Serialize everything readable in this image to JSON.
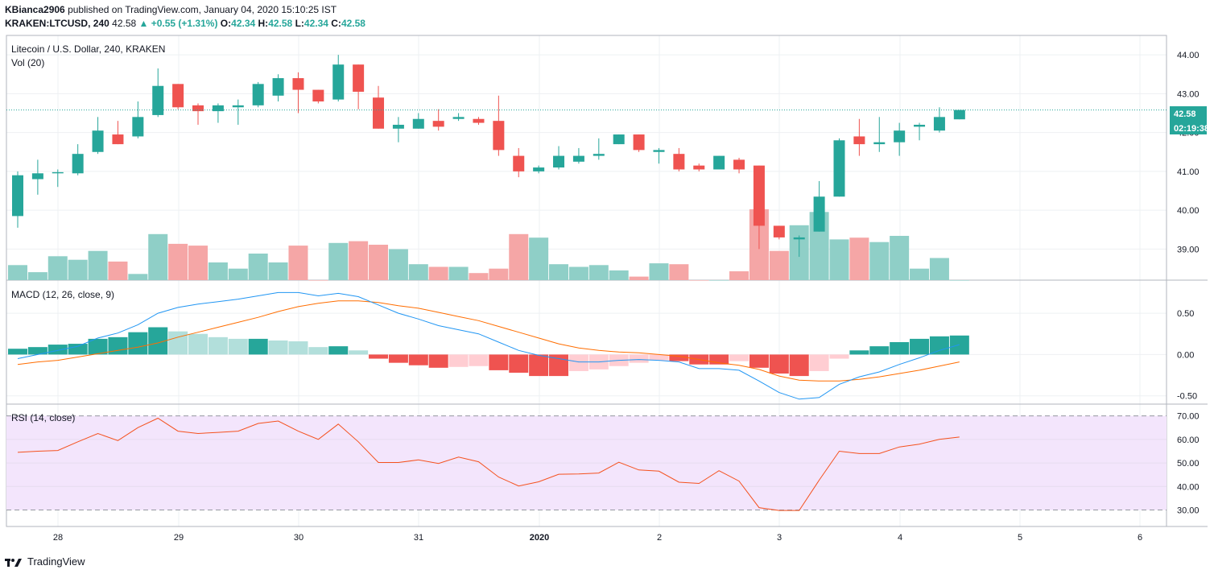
{
  "header": {
    "author": "KBianca2906",
    "published_text": "published on TradingView.com, January 04, 2020 15:10:25 IST",
    "symbol_line_prefix": "KRAKEN:LTCUSD, 240",
    "last": "42.58",
    "change": "▲ +0.55 (+1.31%)",
    "o_label": "O:",
    "o": "42.34",
    "h_label": "H:",
    "h": "42.58",
    "l_label": "L:",
    "l": "42.34",
    "c_label": "C:",
    "c": "42.58"
  },
  "panes": {
    "price_title": "Litecoin / U.S. Dollar, 240, KRAKEN",
    "vol_title": "Vol (20)",
    "macd_title": "MACD (12, 26, close, 9)",
    "rsi_title": "RSI (14, close)"
  },
  "price_badge": {
    "value": "42.58",
    "countdown": "02:19:38"
  },
  "branding": {
    "name": "TradingView"
  },
  "colors": {
    "up": "#26a69a",
    "down": "#ef5350",
    "up_light": "#b2dfdb",
    "down_light": "#ffcdd2",
    "vol_up": "#8fcfc7",
    "vol_down": "#f5a6a6",
    "macd_line": "#2196f3",
    "signal_line": "#ff6d00",
    "rsi_line": "#f4511e",
    "rsi_band": "#f3e5fc",
    "grid": "#eef0f3"
  },
  "chart_data": {
    "type": "candlestick",
    "price_axis": {
      "min": 38.2,
      "max": 44.5,
      "ticks": [
        "44.00",
        "43.00",
        "42.00",
        "41.00",
        "40.00",
        "39.00"
      ]
    },
    "x_axis": {
      "labels": [
        "28",
        "29",
        "30",
        "31",
        "2020",
        "2",
        "3",
        "4",
        "5",
        "6"
      ]
    },
    "candles": [
      {
        "o": 39.85,
        "h": 41.0,
        "l": 39.55,
        "c": 40.9
      },
      {
        "o": 40.8,
        "h": 41.3,
        "l": 40.4,
        "c": 40.95
      },
      {
        "o": 40.95,
        "h": 41.05,
        "l": 40.6,
        "c": 40.98
      },
      {
        "o": 40.95,
        "h": 41.7,
        "l": 40.9,
        "c": 41.45
      },
      {
        "o": 41.5,
        "h": 42.4,
        "l": 41.45,
        "c": 42.05
      },
      {
        "o": 41.95,
        "h": 42.3,
        "l": 41.7,
        "c": 41.7
      },
      {
        "o": 41.9,
        "h": 42.8,
        "l": 41.85,
        "c": 42.4
      },
      {
        "o": 42.45,
        "h": 43.65,
        "l": 42.4,
        "c": 43.2
      },
      {
        "o": 43.25,
        "h": 43.25,
        "l": 42.6,
        "c": 42.65
      },
      {
        "o": 42.7,
        "h": 42.75,
        "l": 42.2,
        "c": 42.55
      },
      {
        "o": 42.55,
        "h": 42.75,
        "l": 42.25,
        "c": 42.7
      },
      {
        "o": 42.65,
        "h": 42.85,
        "l": 42.2,
        "c": 42.7
      },
      {
        "o": 42.7,
        "h": 43.3,
        "l": 42.65,
        "c": 43.25
      },
      {
        "o": 42.95,
        "h": 43.5,
        "l": 42.8,
        "c": 43.4
      },
      {
        "o": 43.4,
        "h": 43.55,
        "l": 42.5,
        "c": 43.1
      },
      {
        "o": 43.1,
        "h": 43.1,
        "l": 42.75,
        "c": 42.8
      },
      {
        "o": 42.85,
        "h": 44.0,
        "l": 42.8,
        "c": 43.75
      },
      {
        "o": 43.75,
        "h": 43.75,
        "l": 42.6,
        "c": 43.05
      },
      {
        "o": 42.9,
        "h": 43.2,
        "l": 42.1,
        "c": 42.1
      },
      {
        "o": 42.1,
        "h": 42.4,
        "l": 41.75,
        "c": 42.2
      },
      {
        "o": 42.1,
        "h": 42.5,
        "l": 42.1,
        "c": 42.35
      },
      {
        "o": 42.3,
        "h": 42.6,
        "l": 42.05,
        "c": 42.15
      },
      {
        "o": 42.35,
        "h": 42.5,
        "l": 42.3,
        "c": 42.4
      },
      {
        "o": 42.35,
        "h": 42.4,
        "l": 42.2,
        "c": 42.25
      },
      {
        "o": 42.3,
        "h": 42.95,
        "l": 41.4,
        "c": 41.55
      },
      {
        "o": 41.4,
        "h": 41.6,
        "l": 40.85,
        "c": 41.0
      },
      {
        "o": 41.0,
        "h": 41.15,
        "l": 40.95,
        "c": 41.1
      },
      {
        "o": 41.1,
        "h": 41.65,
        "l": 41.05,
        "c": 41.4
      },
      {
        "o": 41.25,
        "h": 41.6,
        "l": 41.2,
        "c": 41.4
      },
      {
        "o": 41.4,
        "h": 41.85,
        "l": 41.3,
        "c": 41.45
      },
      {
        "o": 41.7,
        "h": 41.95,
        "l": 41.7,
        "c": 41.95
      },
      {
        "o": 41.95,
        "h": 41.95,
        "l": 41.5,
        "c": 41.55
      },
      {
        "o": 41.5,
        "h": 41.6,
        "l": 41.2,
        "c": 41.55
      },
      {
        "o": 41.45,
        "h": 41.6,
        "l": 41.0,
        "c": 41.05
      },
      {
        "o": 41.15,
        "h": 41.2,
        "l": 41.0,
        "c": 41.05
      },
      {
        "o": 41.05,
        "h": 41.4,
        "l": 41.05,
        "c": 41.4
      },
      {
        "o": 41.3,
        "h": 41.35,
        "l": 40.95,
        "c": 41.05
      },
      {
        "o": 41.15,
        "h": 41.15,
        "l": 39.0,
        "c": 39.6
      },
      {
        "o": 39.6,
        "h": 39.6,
        "l": 39.25,
        "c": 39.3
      },
      {
        "o": 39.25,
        "h": 39.35,
        "l": 38.8,
        "c": 39.3
      },
      {
        "o": 39.45,
        "h": 40.75,
        "l": 39.45,
        "c": 40.35
      },
      {
        "o": 40.35,
        "h": 41.85,
        "l": 40.35,
        "c": 41.8
      },
      {
        "o": 41.9,
        "h": 42.35,
        "l": 41.4,
        "c": 41.7
      },
      {
        "o": 41.7,
        "h": 42.4,
        "l": 41.5,
        "c": 41.75
      },
      {
        "o": 41.75,
        "h": 42.25,
        "l": 41.4,
        "c": 42.05
      },
      {
        "o": 42.15,
        "h": 42.25,
        "l": 41.8,
        "c": 42.2
      },
      {
        "o": 42.05,
        "h": 42.65,
        "l": 42.0,
        "c": 42.4
      },
      {
        "o": 42.34,
        "h": 42.58,
        "l": 42.34,
        "c": 42.58
      }
    ],
    "volume": [
      17,
      9,
      27,
      23,
      33,
      21,
      7,
      52,
      41,
      39,
      20,
      13,
      30,
      20,
      39,
      0,
      42,
      44,
      40,
      35,
      18,
      15,
      15,
      8,
      13,
      52,
      48,
      18,
      15,
      17,
      11,
      4,
      19,
      18,
      0,
      0,
      10,
      80,
      33,
      62,
      77,
      46,
      48,
      43,
      50,
      13,
      25,
      0
    ],
    "macd": {
      "ticks": [
        "0.50",
        "0.00",
        "-0.50"
      ],
      "macd_line": [
        -0.05,
        0.0,
        0.05,
        0.1,
        0.2,
        0.26,
        0.36,
        0.5,
        0.57,
        0.61,
        0.64,
        0.67,
        0.71,
        0.75,
        0.75,
        0.71,
        0.74,
        0.7,
        0.6,
        0.5,
        0.43,
        0.35,
        0.3,
        0.25,
        0.15,
        0.05,
        -0.01,
        -0.05,
        -0.09,
        -0.09,
        -0.07,
        -0.06,
        -0.07,
        -0.09,
        -0.17,
        -0.17,
        -0.19,
        -0.32,
        -0.46,
        -0.54,
        -0.52,
        -0.36,
        -0.27,
        -0.21,
        -0.12,
        -0.04,
        0.05,
        0.12
      ],
      "signal_line": [
        -0.12,
        -0.09,
        -0.07,
        -0.03,
        0.01,
        0.05,
        0.09,
        0.14,
        0.21,
        0.27,
        0.33,
        0.39,
        0.45,
        0.52,
        0.58,
        0.62,
        0.65,
        0.65,
        0.63,
        0.59,
        0.56,
        0.51,
        0.46,
        0.41,
        0.34,
        0.27,
        0.2,
        0.13,
        0.08,
        0.05,
        0.03,
        0.02,
        0.0,
        -0.02,
        -0.06,
        -0.1,
        -0.13,
        -0.18,
        -0.26,
        -0.31,
        -0.32,
        -0.32,
        -0.3,
        -0.27,
        -0.23,
        -0.19,
        -0.14,
        -0.09
      ],
      "histogram": [
        0.07,
        0.09,
        0.12,
        0.13,
        0.19,
        0.21,
        0.27,
        0.33,
        0.28,
        0.25,
        0.21,
        0.19,
        0.19,
        0.17,
        0.16,
        0.09,
        0.1,
        0.05,
        -0.05,
        -0.1,
        -0.13,
        -0.16,
        -0.15,
        -0.14,
        -0.19,
        -0.22,
        -0.26,
        -0.26,
        -0.2,
        -0.18,
        -0.14,
        -0.1,
        -0.07,
        -0.08,
        -0.12,
        -0.12,
        -0.08,
        -0.16,
        -0.23,
        -0.26,
        -0.2,
        -0.05,
        0.05,
        0.1,
        0.15,
        0.19,
        0.22,
        0.23
      ]
    },
    "rsi": {
      "ticks": [
        "70.00",
        "60.00",
        "50.00",
        "40.00",
        "30.00"
      ],
      "upper": 70,
      "lower": 30,
      "values": [
        54.5,
        55,
        55.3,
        59,
        62.5,
        59.5,
        65,
        69,
        63.5,
        62.5,
        63,
        63.5,
        66.8,
        67.8,
        63.5,
        60,
        66.5,
        59,
        50.2,
        50.2,
        51.3,
        49.8,
        52.5,
        50.5,
        44,
        40.2,
        42,
        45.2,
        45.3,
        45.7,
        50.3,
        47,
        46.5,
        41.8,
        41.3,
        46.7,
        42.3,
        31,
        29.8,
        29.8,
        42.7,
        55,
        54,
        54,
        56.8,
        58,
        60,
        61
      ]
    }
  }
}
